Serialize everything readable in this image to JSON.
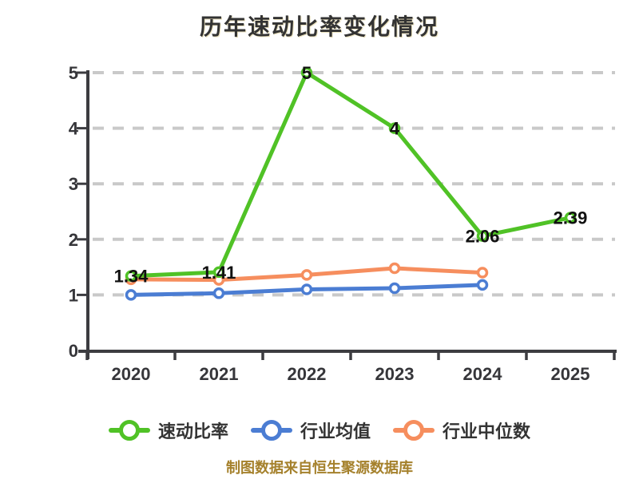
{
  "footer": {
    "text": "制图数据来自恒生聚源数据库"
  },
  "colors": {
    "background": "#ffffff",
    "title_text": "#333333",
    "axis": "#3c3c40",
    "axis_text": "#36363a",
    "grid": "#c9c9c9",
    "data_label_text": "#111111",
    "legend_text": "#333333",
    "footer_text": "#a5812c",
    "series_green": "#50c226",
    "series_blue": "#4b7dd3",
    "series_orange": "#f68e5e"
  },
  "chart_data": {
    "type": "line",
    "title": "历年速动比率变化情况",
    "categories": [
      "2020",
      "2021",
      "2022",
      "2023",
      "2024",
      "2025"
    ],
    "ylim": [
      0,
      5
    ],
    "yticks": [
      0,
      1,
      2,
      3,
      4,
      5
    ],
    "grid": "horizontal-dashed",
    "legend_position": "bottom",
    "series": [
      {
        "id": "quick-ratio",
        "name": "速动比率",
        "color": "#50c226",
        "values": [
          1.34,
          1.41,
          5,
          4,
          2.06,
          2.39
        ],
        "labels": [
          "1.34",
          "1.41",
          "5",
          "4",
          "2.06",
          "2.39"
        ]
      },
      {
        "id": "industry-average",
        "name": "行业均值",
        "color": "#4b7dd3",
        "values": [
          1.0,
          1.03,
          1.1,
          1.12,
          1.18,
          null
        ]
      },
      {
        "id": "industry-median",
        "name": "行业中位数",
        "color": "#f68e5e",
        "values": [
          1.28,
          1.27,
          1.36,
          1.48,
          1.4,
          null
        ]
      }
    ]
  }
}
